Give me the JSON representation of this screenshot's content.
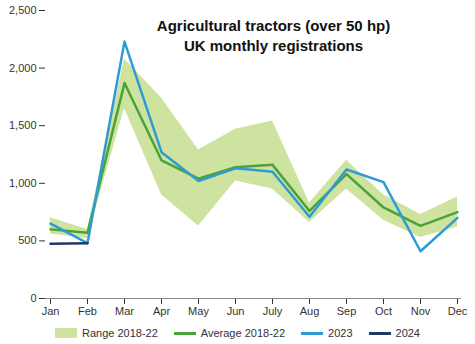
{
  "chart_data": {
    "type": "line",
    "title": "Agricultural tractors (over 50 hp)",
    "subtitle": "UK monthly registrations",
    "categories": [
      "Jan",
      "Feb",
      "Mar",
      "Apr",
      "May",
      "Jun",
      "July",
      "Aug",
      "Sep",
      "Oct",
      "Nov",
      "Dec"
    ],
    "series": [
      {
        "name": "Range 2018-22",
        "type": "area",
        "color": "#cfe3a0",
        "low": [
          560,
          520,
          1650,
          900,
          630,
          1020,
          950,
          660,
          950,
          680,
          530,
          620
        ],
        "high": [
          700,
          600,
          2080,
          1740,
          1290,
          1470,
          1540,
          830,
          1200,
          900,
          730,
          880
        ]
      },
      {
        "name": "Average 2018-22",
        "type": "line",
        "color": "#4aa337",
        "values": [
          600,
          570,
          1870,
          1200,
          1040,
          1140,
          1160,
          760,
          1080,
          790,
          630,
          750
        ]
      },
      {
        "name": "2023",
        "type": "line",
        "color": "#2f9bd6",
        "values": [
          650,
          480,
          2230,
          1270,
          1020,
          1130,
          1100,
          710,
          1120,
          1010,
          410,
          700
        ]
      },
      {
        "name": "2024",
        "type": "line",
        "color": "#1f3864",
        "values": [
          475,
          480,
          null,
          null,
          null,
          null,
          null,
          null,
          null,
          null,
          null,
          null
        ]
      }
    ],
    "ylim": [
      0,
      2500
    ],
    "yticks": [
      0,
      500,
      1000,
      1500,
      2000,
      2500
    ],
    "grid": false,
    "legend": "bottom"
  }
}
